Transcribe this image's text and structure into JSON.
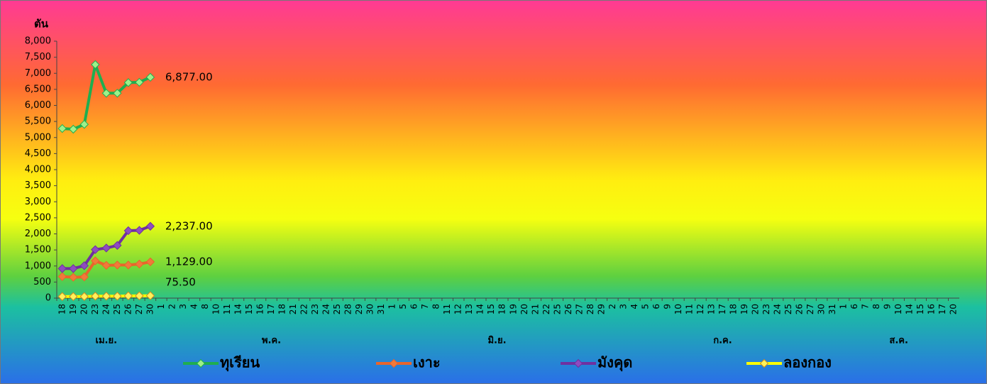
{
  "chart_data": {
    "type": "line",
    "y_label": "ตัน",
    "categories": [
      "18",
      "19",
      "20",
      "23",
      "24",
      "25",
      "26",
      "27",
      "30",
      "1",
      "2",
      "3",
      "4",
      "8",
      "10",
      "11",
      "14",
      "15",
      "16",
      "17",
      "18",
      "21",
      "22",
      "23",
      "24",
      "25",
      "28",
      "29",
      "30",
      "31",
      "1",
      "5",
      "6",
      "7",
      "8",
      "11",
      "12",
      "13",
      "14",
      "15",
      "18",
      "19",
      "20",
      "21",
      "22",
      "25",
      "26",
      "27",
      "28",
      "29",
      "2",
      "3",
      "4",
      "5",
      "6",
      "9",
      "10",
      "11",
      "12",
      "13",
      "17",
      "18",
      "19",
      "20",
      "23",
      "24",
      "25",
      "26",
      "27",
      "30",
      "31",
      "1",
      "6",
      "7",
      "8",
      "9",
      "10",
      "14",
      "15",
      "16",
      "17",
      "20"
    ],
    "groups": [
      {
        "label": "เม.ย.",
        "count": 9
      },
      {
        "label": "พ.ค.",
        "count": 21
      },
      {
        "label": "มิ.ย.",
        "count": 20
      },
      {
        "label": "ก.ค.",
        "count": 21
      },
      {
        "label": "ส.ค.",
        "count": 11
      }
    ],
    "series": [
      {
        "name": "ทุเรียน",
        "color": "#1fae4f",
        "marker_color": "#9ef08a",
        "values": [
          5280,
          5260,
          5410,
          7270,
          6380,
          6380,
          6710,
          6720,
          6877,
          null,
          null,
          null,
          null,
          null,
          null,
          null,
          null,
          null,
          null,
          null,
          null,
          null,
          null,
          null,
          null,
          null,
          null,
          null,
          null,
          null,
          null,
          null,
          null,
          null,
          null,
          null,
          null,
          null,
          null,
          null,
          null,
          null,
          null,
          null,
          null,
          null,
          null,
          null,
          null,
          null,
          null,
          null,
          null,
          null,
          null,
          null,
          null,
          null,
          null,
          null,
          null,
          null,
          null,
          null,
          null,
          null,
          null,
          null,
          null,
          null,
          null,
          null,
          null,
          null,
          null,
          null,
          null,
          null,
          null,
          null,
          null,
          null
        ]
      },
      {
        "name": "เงาะ",
        "color": "#e8652b",
        "marker_color": "#f07a3a",
        "values": [
          670,
          650,
          660,
          1160,
          1020,
          1030,
          1030,
          1060,
          1129,
          null,
          null,
          null,
          null,
          null,
          null,
          null,
          null,
          null,
          null,
          null,
          null,
          null,
          null,
          null,
          null,
          null,
          null,
          null,
          null,
          null,
          null,
          null,
          null,
          null,
          null,
          null,
          null,
          null,
          null,
          null,
          null,
          null,
          null,
          null,
          null,
          null,
          null,
          null,
          null,
          null,
          null,
          null,
          null,
          null,
          null,
          null,
          null,
          null,
          null,
          null,
          null,
          null,
          null,
          null,
          null,
          null,
          null,
          null,
          null,
          null,
          null,
          null,
          null,
          null,
          null,
          null,
          null,
          null,
          null,
          null,
          null,
          null
        ]
      },
      {
        "name": "มังคุด",
        "color": "#7030a0",
        "marker_color": "#8e4cc0",
        "values": [
          920,
          920,
          1010,
          1510,
          1560,
          1640,
          2100,
          2110,
          2237,
          null,
          null,
          null,
          null,
          null,
          null,
          null,
          null,
          null,
          null,
          null,
          null,
          null,
          null,
          null,
          null,
          null,
          null,
          null,
          null,
          null,
          null,
          null,
          null,
          null,
          null,
          null,
          null,
          null,
          null,
          null,
          null,
          null,
          null,
          null,
          null,
          null,
          null,
          null,
          null,
          null,
          null,
          null,
          null,
          null,
          null,
          null,
          null,
          null,
          null,
          null,
          null,
          null,
          null,
          null,
          null,
          null,
          null,
          null,
          null,
          null,
          null,
          null,
          null,
          null,
          null,
          null,
          null,
          null,
          null,
          null,
          null,
          null
        ]
      },
      {
        "name": "ลองกอง",
        "color": "#ffff00",
        "marker_color": "#fff25a",
        "values": [
          50,
          50,
          50,
          60,
          60,
          60,
          70,
          70,
          75.5,
          null,
          null,
          null,
          null,
          null,
          null,
          null,
          null,
          null,
          null,
          null,
          null,
          null,
          null,
          null,
          null,
          null,
          null,
          null,
          null,
          null,
          null,
          null,
          null,
          null,
          null,
          null,
          null,
          null,
          null,
          null,
          null,
          null,
          null,
          null,
          null,
          null,
          null,
          null,
          null,
          null,
          null,
          null,
          null,
          null,
          null,
          null,
          null,
          null,
          null,
          null,
          null,
          null,
          null,
          null,
          null,
          null,
          null,
          null,
          null,
          null,
          null,
          null,
          null,
          null,
          null,
          null,
          null,
          null,
          null,
          null,
          null,
          null
        ]
      }
    ],
    "annotations": [
      {
        "text": "6,877.00",
        "series": 0,
        "index": 8
      },
      {
        "text": "2,237.00",
        "series": 2,
        "index": 8
      },
      {
        "text": "1,129.00",
        "series": 1,
        "index": 8
      },
      {
        "text": "75.50",
        "series": 3,
        "index": 8
      }
    ],
    "ylim": [
      0,
      8000
    ],
    "yticks": [
      0,
      {
        "value": 500,
        "label": "500"
      },
      {
        "value": 1000,
        "label": "1,000"
      },
      {
        "value": 1500,
        "label": "1,500"
      },
      {
        "value": 2000,
        "label": "2,000"
      },
      {
        "value": 2500,
        "label": "2,500"
      },
      {
        "value": 3000,
        "label": "3,000"
      },
      {
        "value": 3500,
        "label": "3,500"
      },
      {
        "value": 4000,
        "label": "4,000"
      },
      {
        "value": 4500,
        "label": "4,500"
      },
      {
        "value": 5000,
        "label": "5,000"
      },
      {
        "value": 5500,
        "label": "5,500"
      },
      {
        "value": 6000,
        "label": "6,000"
      },
      {
        "value": 6500,
        "label": "6,500"
      },
      {
        "value": 7000,
        "label": "7,000"
      },
      {
        "value": 7500,
        "label": "7,500"
      },
      {
        "value": 8000,
        "label": "8,000"
      }
    ],
    "grid": false,
    "legend": "bottom"
  }
}
